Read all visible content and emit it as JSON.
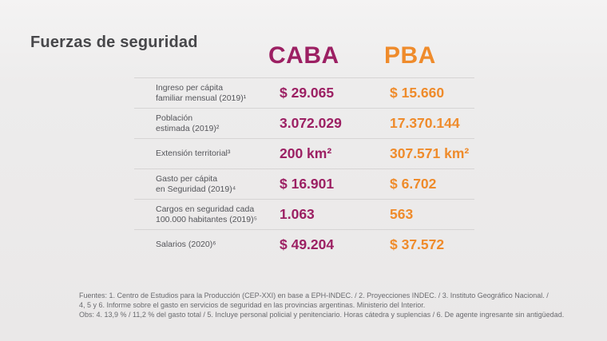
{
  "page": {
    "title": "Fuerzas de seguridad"
  },
  "colors": {
    "caba": "#9c2063",
    "pba": "#ef8b2b",
    "divider": "#d6d4d4"
  },
  "chart_data": {
    "type": "table",
    "title": "Fuerzas de seguridad",
    "columns": [
      {
        "key": "caba",
        "label": "CABA",
        "color": "#9c2063"
      },
      {
        "key": "pba",
        "label": "PBA",
        "color": "#ef8b2b"
      }
    ],
    "rows": [
      {
        "label": "Ingreso per cápita familiar mensual (2019)¹",
        "label_lines": [
          "Ingreso per cápita",
          "familiar mensual (2019)¹"
        ],
        "caba": "$ 29.065",
        "pba": "$ 15.660",
        "caba_value": 29065,
        "pba_value": 15660,
        "unit": "ARS"
      },
      {
        "label": "Población estimada (2019)²",
        "label_lines": [
          "Población",
          "estimada (2019)²"
        ],
        "caba": "3.072.029",
        "pba": "17.370.144",
        "caba_value": 3072029,
        "pba_value": 17370144,
        "unit": "habitantes"
      },
      {
        "label": "Extensión territorial³",
        "label_lines": [
          "Extensión territorial³"
        ],
        "caba": "200 km²",
        "pba": "307.571 km²",
        "caba_value": 200,
        "pba_value": 307571,
        "unit": "km²"
      },
      {
        "label": "Gasto per cápita en Seguridad (2019)⁴",
        "label_lines": [
          "Gasto per cápita",
          "en Seguridad (2019)⁴"
        ],
        "caba": "$ 16.901",
        "pba": "$ 6.702",
        "caba_value": 16901,
        "pba_value": 6702,
        "unit": "ARS"
      },
      {
        "label": "Cargos en seguridad cada 100.000 habitantes (2019)⁵",
        "label_lines": [
          "Cargos en seguridad cada",
          "100.000 habitantes (2019)⁵"
        ],
        "caba": "1.063",
        "pba": "563",
        "caba_value": 1063,
        "pba_value": 563,
        "unit": "cargos"
      },
      {
        "label": "Salarios (2020)⁶",
        "label_lines": [
          "Salarios (2020)⁶"
        ],
        "caba": "$ 49.204",
        "pba": "$ 37.572",
        "caba_value": 49204,
        "pba_value": 37572,
        "unit": "ARS"
      }
    ]
  },
  "footer": {
    "lines": [
      "Fuentes: 1. Centro de Estudios para la Producción (CEP-XXI) en base a EPH-INDEC. / 2. Proyecciones INDEC. / 3. Instituto Geográfico Nacional. /",
      "4, 5 y 6. Informe sobre el gasto en servicios de seguridad en las provincias argentinas. Ministerio del Interior.",
      "Obs: 4. 13,9 % / 11,2 % del gasto total / 5. Incluye personal policial y penitenciario. Horas cátedra y suplencias / 6. De agente ingresante sin antigüedad."
    ]
  }
}
